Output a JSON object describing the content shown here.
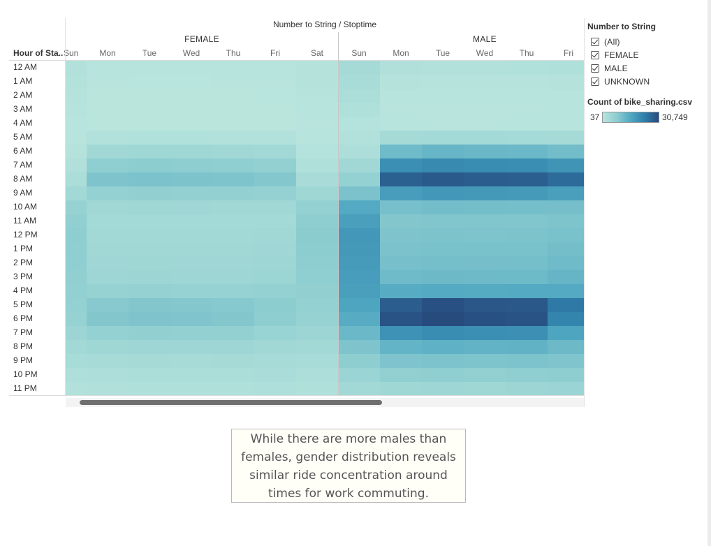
{
  "column_title": "Number to String  /  Stoptime",
  "row_field": "Hour of Sta..",
  "genders": [
    "FEMALE",
    "MALE"
  ],
  "days_female": [
    "Sun",
    "Mon",
    "Tue",
    "Wed",
    "Thu",
    "Fri",
    "Sat"
  ],
  "days_male": [
    "Sun",
    "Mon",
    "Tue",
    "Wed",
    "Thu",
    "Fri"
  ],
  "hours": [
    "12 AM",
    "1 AM",
    "2 AM",
    "3 AM",
    "4 AM",
    "5 AM",
    "6 AM",
    "7 AM",
    "8 AM",
    "9 AM",
    "10 AM",
    "11 AM",
    "12 PM",
    "1 PM",
    "2 PM",
    "3 PM",
    "4 PM",
    "5 PM",
    "6 PM",
    "7 PM",
    "8 PM",
    "9 PM",
    "10 PM",
    "11 PM"
  ],
  "filter": {
    "title": "Number to String",
    "items": [
      "(All)",
      "FEMALE",
      "MALE",
      "UNKNOWN"
    ]
  },
  "legend": {
    "title": "Count of bike_sharing.csv",
    "min": "37",
    "max": "30,749",
    "colors": [
      "#b9e5dd",
      "#8dcdd0",
      "#50a8c1",
      "#2f7fab",
      "#284b7e"
    ]
  },
  "caption": "While there are more males than females, gender distribution reveals similar ride concentration around times for work commuting.",
  "chart_data": {
    "type": "heatmap",
    "title": "Number to String / Stoptime",
    "x_field": "Stoptime",
    "y_field": "Hour of Sta..",
    "color_field": "Count of bike_sharing.csv",
    "color_range": [
      37,
      30749
    ],
    "rows": [
      "12 AM",
      "1 AM",
      "2 AM",
      "3 AM",
      "4 AM",
      "5 AM",
      "6 AM",
      "7 AM",
      "8 AM",
      "9 AM",
      "10 AM",
      "11 AM",
      "12 PM",
      "1 PM",
      "2 PM",
      "3 PM",
      "4 PM",
      "5 PM",
      "6 PM",
      "7 PM",
      "8 PM",
      "9 PM",
      "10 PM",
      "11 PM"
    ],
    "panels": [
      {
        "gender": "FEMALE",
        "columns": [
          "Sun",
          "Mon",
          "Tue",
          "Wed",
          "Thu",
          "Fri",
          "Sat"
        ],
        "values": [
          [
            1200,
            400,
            300,
            300,
            350,
            400,
            800
          ],
          [
            1000,
            200,
            150,
            150,
            200,
            250,
            700
          ],
          [
            800,
            100,
            80,
            80,
            100,
            150,
            600
          ],
          [
            500,
            80,
            60,
            60,
            80,
            100,
            400
          ],
          [
            300,
            100,
            90,
            90,
            100,
            120,
            250
          ],
          [
            400,
            1300,
            1400,
            1400,
            1300,
            1200,
            300
          ],
          [
            700,
            4200,
            4600,
            4500,
            4300,
            4000,
            900
          ],
          [
            1500,
            7200,
            7800,
            7600,
            7400,
            6800,
            1600
          ],
          [
            2500,
            9500,
            10000,
            9800,
            9600,
            8800,
            2800
          ],
          [
            4000,
            6500,
            7000,
            6900,
            6700,
            6300,
            4500
          ],
          [
            6000,
            4200,
            4500,
            4400,
            4300,
            4200,
            6500
          ],
          [
            7000,
            3800,
            3900,
            3800,
            3800,
            3900,
            7500
          ],
          [
            7500,
            4000,
            4100,
            4000,
            4000,
            4200,
            8000
          ],
          [
            7400,
            4200,
            4300,
            4200,
            4200,
            4400,
            7800
          ],
          [
            7200,
            4400,
            4500,
            4400,
            4400,
            4700,
            7500
          ],
          [
            7100,
            4800,
            5000,
            4900,
            4900,
            5300,
            7300
          ],
          [
            6900,
            6000,
            6300,
            6200,
            6200,
            6500,
            7000
          ],
          [
            6500,
            8500,
            9000,
            8800,
            8600,
            7800,
            6500
          ],
          [
            6000,
            9000,
            9500,
            9300,
            9000,
            7500,
            6000
          ],
          [
            5000,
            6500,
            7000,
            6800,
            6700,
            5600,
            5000
          ],
          [
            4000,
            4500,
            4800,
            4700,
            4700,
            4300,
            4000
          ],
          [
            3000,
            3200,
            3400,
            3300,
            3400,
            3300,
            3000
          ],
          [
            2000,
            2200,
            2400,
            2300,
            2500,
            2600,
            2200
          ],
          [
            1300,
            1500,
            1600,
            1600,
            1700,
            1900,
            1600
          ]
        ]
      },
      {
        "gender": "MALE",
        "columns": [
          "Sun",
          "Mon",
          "Tue",
          "Wed",
          "Thu",
          "Fri"
        ],
        "values": [
          [
            3500,
            1500,
            1200,
            1200,
            1400,
            1700
          ],
          [
            3000,
            700,
            500,
            500,
            600,
            800
          ],
          [
            2500,
            400,
            300,
            300,
            350,
            450
          ],
          [
            1700,
            250,
            200,
            200,
            220,
            300
          ],
          [
            900,
            300,
            280,
            280,
            300,
            350
          ],
          [
            1200,
            3500,
            3800,
            3800,
            3700,
            3400
          ],
          [
            2200,
            11500,
            12500,
            12300,
            12000,
            11000
          ],
          [
            4200,
            20000,
            21000,
            20500,
            20300,
            19000
          ],
          [
            6500,
            27500,
            28500,
            28000,
            27800,
            26000
          ],
          [
            10000,
            17500,
            18500,
            18200,
            18000,
            17000
          ],
          [
            15000,
            10500,
            11000,
            10800,
            10700,
            10600
          ],
          [
            17000,
            9000,
            9200,
            9100,
            9200,
            9600
          ],
          [
            18500,
            9500,
            9700,
            9600,
            9700,
            10200
          ],
          [
            18200,
            10000,
            10200,
            10100,
            10200,
            10800
          ],
          [
            17800,
            10500,
            10700,
            10600,
            10700,
            11500
          ],
          [
            17400,
            11500,
            11800,
            11600,
            11700,
            12600
          ],
          [
            17000,
            14500,
            15000,
            14800,
            14900,
            15000
          ],
          [
            16000,
            28000,
            30000,
            29000,
            28800,
            24000
          ],
          [
            14500,
            29500,
            30749,
            30000,
            29500,
            22000
          ],
          [
            12000,
            19500,
            20500,
            20000,
            19800,
            16000
          ],
          [
            9500,
            13000,
            13500,
            13200,
            13300,
            11800
          ],
          [
            7500,
            9500,
            9800,
            9600,
            9800,
            9400
          ],
          [
            5500,
            7000,
            7200,
            7100,
            7400,
            7500
          ],
          [
            4000,
            4500,
            4700,
            4600,
            5000,
            5500
          ]
        ]
      }
    ]
  }
}
